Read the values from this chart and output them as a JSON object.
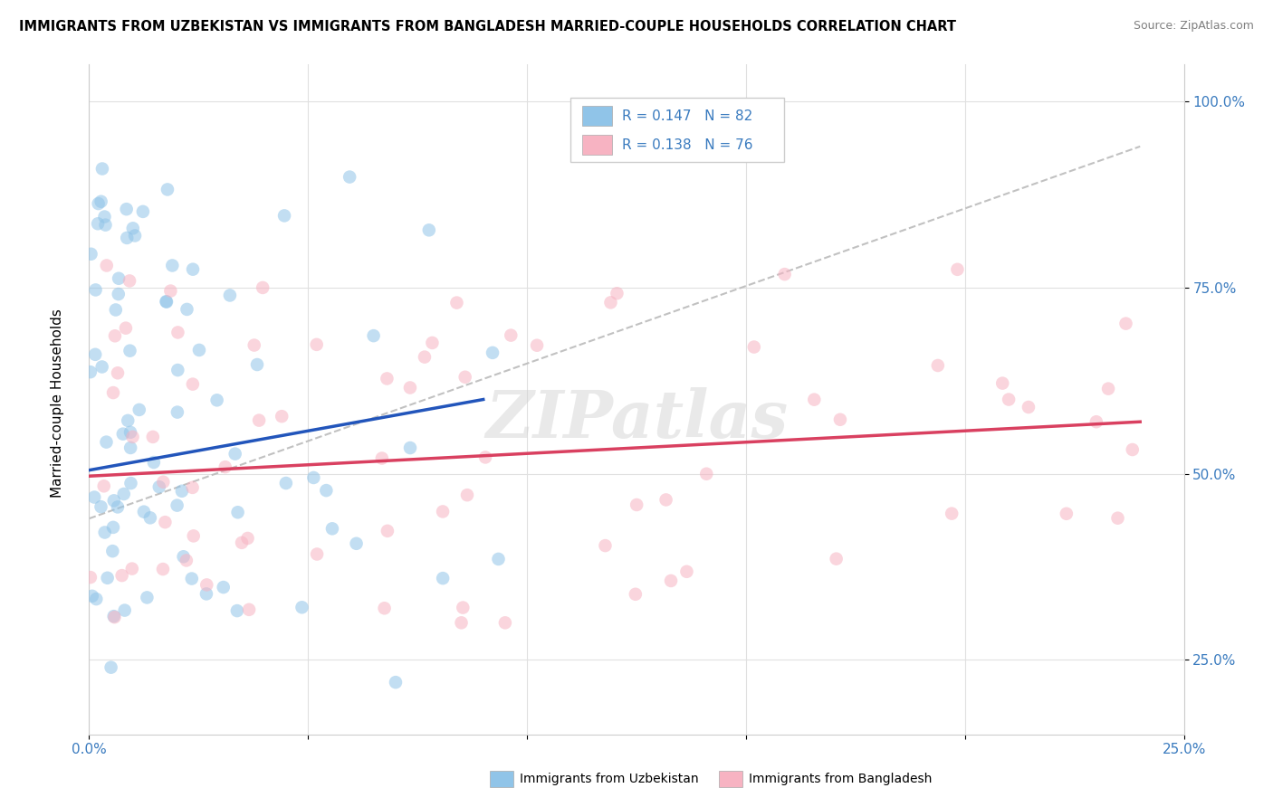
{
  "title": "IMMIGRANTS FROM UZBEKISTAN VS IMMIGRANTS FROM BANGLADESH MARRIED-COUPLE HOUSEHOLDS CORRELATION CHART",
  "source": "Source: ZipAtlas.com",
  "ylabel": "Married-couple Households",
  "color_uzbekistan": "#90c4e8",
  "color_bangladesh": "#f7b3c2",
  "color_trend_blue": "#2255bb",
  "color_trend_pink": "#d94060",
  "color_trend_gray": "#bbbbbb",
  "R1": "R = 0.147",
  "N1": "N = 82",
  "R2": "R = 0.138",
  "N2": "N = 76",
  "xlim": [
    0.0,
    0.25
  ],
  "ylim": [
    0.15,
    1.05
  ],
  "yticks": [
    0.25,
    0.5,
    0.75,
    1.0
  ],
  "yticklabels": [
    "25.0%",
    "50.0%",
    "75.0%",
    "100.0%"
  ],
  "label_uzbekistan": "Immigrants from Uzbekistan",
  "label_bangladesh": "Immigrants from Bangladesh",
  "tick_color": "#3a7bbf",
  "grid_color": "#e0e0e0",
  "watermark": "ZIPatlas"
}
